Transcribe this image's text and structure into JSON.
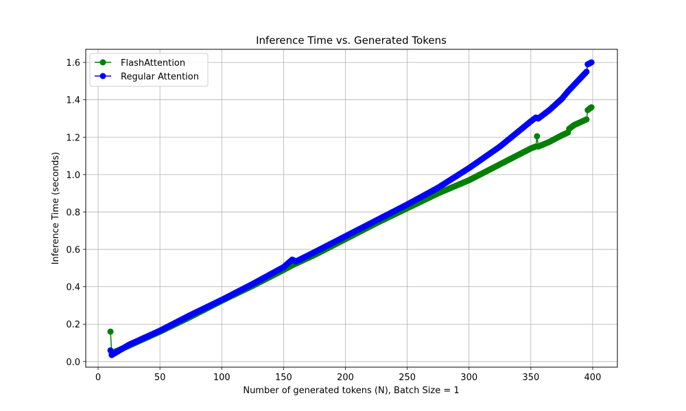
{
  "chart_data": {
    "type": "line",
    "title": "Inference Time vs. Generated Tokens",
    "xlabel": "Number of generated tokens (N), Batch Size = 1",
    "ylabel": "Inference Time (seconds)",
    "xlim": [
      -10,
      420
    ],
    "ylim": [
      -0.03,
      1.67
    ],
    "xticks": [
      0,
      50,
      100,
      150,
      200,
      250,
      300,
      350,
      400
    ],
    "yticks": [
      0.0,
      0.2,
      0.4,
      0.6,
      0.8,
      1.0,
      1.2,
      1.4,
      1.6
    ],
    "yticklabels": [
      "0.0",
      "0.2",
      "0.4",
      "0.6",
      "0.8",
      "1.0",
      "1.2",
      "1.4",
      "1.6"
    ],
    "grid": true,
    "legend_position": "top-left",
    "series": [
      {
        "name": "FlashAttention",
        "color": "#008000",
        "points": [
          [
            10,
            0.16
          ],
          [
            11,
            0.045
          ],
          [
            25,
            0.085
          ],
          [
            50,
            0.16
          ],
          [
            75,
            0.24
          ],
          [
            100,
            0.325
          ],
          [
            125,
            0.405
          ],
          [
            150,
            0.49
          ],
          [
            157,
            0.515
          ],
          [
            175,
            0.57
          ],
          [
            200,
            0.655
          ],
          [
            225,
            0.74
          ],
          [
            250,
            0.82
          ],
          [
            275,
            0.9
          ],
          [
            300,
            0.97
          ],
          [
            325,
            1.055
          ],
          [
            350,
            1.14
          ],
          [
            354,
            1.15
          ],
          [
            355,
            1.205
          ],
          [
            356,
            1.15
          ],
          [
            365,
            1.175
          ],
          [
            375,
            1.21
          ],
          [
            380,
            1.225
          ],
          [
            381,
            1.245
          ],
          [
            385,
            1.265
          ],
          [
            390,
            1.28
          ],
          [
            395,
            1.295
          ],
          [
            396,
            1.345
          ],
          [
            399,
            1.36
          ]
        ]
      },
      {
        "name": "Regular Attention",
        "color": "#0000ff",
        "points": [
          [
            10,
            0.06
          ],
          [
            11,
            0.035
          ],
          [
            25,
            0.09
          ],
          [
            50,
            0.165
          ],
          [
            75,
            0.25
          ],
          [
            100,
            0.33
          ],
          [
            125,
            0.415
          ],
          [
            150,
            0.505
          ],
          [
            157,
            0.545
          ],
          [
            160,
            0.535
          ],
          [
            175,
            0.585
          ],
          [
            200,
            0.67
          ],
          [
            225,
            0.755
          ],
          [
            250,
            0.84
          ],
          [
            275,
            0.93
          ],
          [
            300,
            1.035
          ],
          [
            325,
            1.15
          ],
          [
            350,
            1.285
          ],
          [
            354,
            1.305
          ],
          [
            356,
            1.3
          ],
          [
            365,
            1.345
          ],
          [
            375,
            1.405
          ],
          [
            380,
            1.445
          ],
          [
            390,
            1.515
          ],
          [
            395,
            1.55
          ],
          [
            396,
            1.59
          ],
          [
            399,
            1.6
          ]
        ]
      }
    ]
  }
}
